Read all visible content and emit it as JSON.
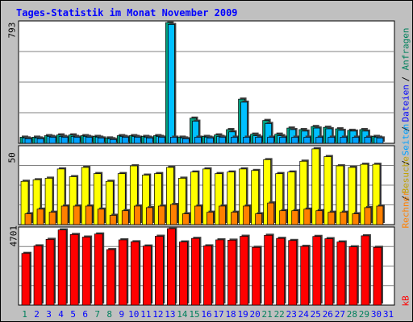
{
  "title": "Tages-Statistik im Monat November 2009",
  "colors": {
    "frame": "#c0c0c0",
    "plot": "#ffffff",
    "grid": "#808080",
    "hits": "#00c0ff",
    "files": "#00a0ff",
    "pages": "#00a080",
    "visits": "#ffff00",
    "sites": "#ff8000",
    "kbytes": "#ff0000",
    "weekend": "#00805c",
    "weekday": "#0000ff"
  },
  "right_labels": {
    "anfragen": "Anfragen",
    "dateien": "Dateien",
    "seiten": "Seiten",
    "besuche": "Besuche",
    "rechner": "Rechner",
    "kb": "kB",
    "sep1": "/",
    "sep2": "/",
    "sep3": "/",
    "sep4": "/"
  },
  "chart_data": [
    {
      "type": "bar",
      "panel": "top",
      "ylim": [
        0,
        793
      ],
      "ymax_label": "793",
      "categories": [
        "1",
        "2",
        "3",
        "4",
        "5",
        "6",
        "7",
        "8",
        "9",
        "10",
        "11",
        "12",
        "13",
        "14",
        "15",
        "16",
        "17",
        "18",
        "19",
        "20",
        "21",
        "22",
        "23",
        "24",
        "25",
        "26",
        "27",
        "28",
        "29",
        "30",
        "31"
      ],
      "weekend_days": [
        "1",
        "7",
        "8",
        "14",
        "15",
        "21",
        "22",
        "28",
        "29"
      ],
      "series": [
        {
          "name": "Anfragen",
          "values": [
            40,
            40,
            50,
            55,
            55,
            50,
            45,
            35,
            50,
            50,
            45,
            50,
            793,
            40,
            165,
            45,
            55,
            90,
            290,
            60,
            150,
            60,
            100,
            90,
            110,
            105,
            95,
            85,
            90,
            45,
            0
          ]
        },
        {
          "name": "Dateien",
          "values": [
            35,
            35,
            45,
            45,
            45,
            45,
            40,
            30,
            45,
            45,
            40,
            45,
            780,
            35,
            145,
            40,
            45,
            75,
            270,
            50,
            130,
            50,
            90,
            80,
            100,
            95,
            85,
            80,
            80,
            40,
            0
          ]
        },
        {
          "name": "Seiten",
          "values": [
            30,
            30,
            40,
            40,
            40,
            40,
            35,
            25,
            40,
            40,
            35,
            40,
            40,
            30,
            40,
            35,
            40,
            40,
            40,
            40,
            40,
            40,
            40,
            40,
            40,
            40,
            40,
            40,
            40,
            35,
            0
          ]
        }
      ]
    },
    {
      "type": "bar",
      "panel": "middle",
      "ylim": [
        0,
        50
      ],
      "ymax_label": "50",
      "categories": [
        "1",
        "2",
        "3",
        "4",
        "5",
        "6",
        "7",
        "8",
        "9",
        "10",
        "11",
        "12",
        "13",
        "14",
        "15",
        "16",
        "17",
        "18",
        "19",
        "20",
        "21",
        "22",
        "23",
        "24",
        "25",
        "26",
        "27",
        "28",
        "29",
        "30",
        "31"
      ],
      "series": [
        {
          "name": "Besuche",
          "values": [
            28,
            29,
            30,
            36,
            31,
            37,
            33,
            28,
            33,
            38,
            32,
            33,
            37,
            30,
            34,
            36,
            33,
            34,
            36,
            35,
            42,
            33,
            34,
            41,
            49,
            44,
            38,
            37,
            39,
            39,
            0
          ]
        },
        {
          "name": "Rechner",
          "values": [
            7,
            10,
            8,
            12,
            12,
            12,
            10,
            6,
            9,
            12,
            11,
            12,
            13,
            7,
            12,
            8,
            12,
            8,
            12,
            7,
            14,
            9,
            9,
            10,
            9,
            8,
            8,
            7,
            11,
            12,
            0
          ]
        }
      ]
    },
    {
      "type": "bar",
      "panel": "bottom",
      "ylim": [
        0,
        4701
      ],
      "ymax_label": "4701",
      "categories": [
        "1",
        "2",
        "3",
        "4",
        "5",
        "6",
        "7",
        "8",
        "9",
        "10",
        "11",
        "12",
        "13",
        "14",
        "15",
        "16",
        "17",
        "18",
        "19",
        "20",
        "21",
        "22",
        "23",
        "24",
        "25",
        "26",
        "27",
        "28",
        "29",
        "30",
        "31"
      ],
      "series": [
        {
          "name": "kB",
          "values": [
            3180,
            3640,
            4040,
            4620,
            4340,
            4180,
            4370,
            3410,
            4010,
            3890,
            3630,
            4230,
            4701,
            3880,
            4100,
            3640,
            4010,
            3990,
            4230,
            3550,
            4290,
            4100,
            3970,
            3610,
            4220,
            4080,
            3880,
            3580,
            4260,
            3550,
            0
          ]
        }
      ]
    }
  ]
}
